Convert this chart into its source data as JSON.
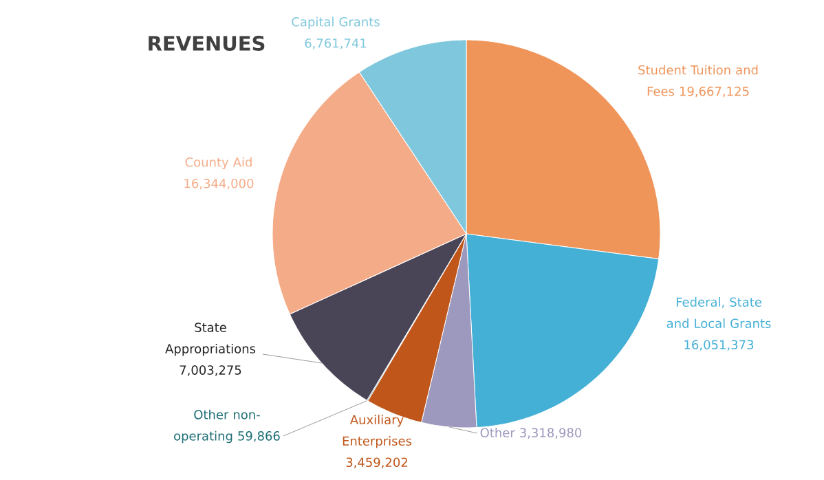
{
  "chart_data": {
    "type": "pie",
    "title": "REVENUES",
    "categories": [
      "Student Tuition and Fees",
      "Federal, State and Local Grants",
      "Other",
      "Auxiliary Enterprises",
      "Other non-operating",
      "State Appropriations",
      "County Aid",
      "Capital Grants"
    ],
    "values": [
      19667125,
      16051373,
      3318980,
      3459202,
      59866,
      7003275,
      16344000,
      6761741
    ],
    "value_labels": [
      "19,667,125",
      "16,051,373",
      "3,318,980",
      "3,459,202",
      "59,866",
      "7,003,275",
      "16,344,000",
      "6,761,741"
    ],
    "colors": [
      "#f0955a",
      "#45b0d6",
      "#9c98be",
      "#c0561a",
      "#1f6f77",
      "#4a4556",
      "#f4ab87",
      "#7ec7dc"
    ]
  }
}
